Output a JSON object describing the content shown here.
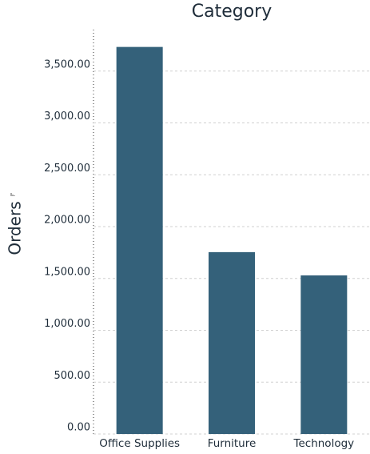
{
  "chart_data": {
    "type": "bar",
    "title": "Category",
    "y_label": "Orders",
    "categories": [
      "Office Supplies",
      "Furniture",
      "Technology"
    ],
    "values": [
      3733,
      1754,
      1530
    ],
    "color": "#34617a",
    "ylim": [
      0,
      3900
    ],
    "yticks": [
      {
        "value": 0,
        "label": "0.00"
      },
      {
        "value": 500,
        "label": "500.00"
      },
      {
        "value": 1000,
        "label": "1,000.00"
      },
      {
        "value": 1500,
        "label": "1,500.00"
      },
      {
        "value": 2000,
        "label": "2,000.00"
      },
      {
        "value": 2500,
        "label": "2,500.00"
      },
      {
        "value": 3000,
        "label": "3,000.00"
      },
      {
        "value": 3500,
        "label": "3,500.00"
      }
    ],
    "grid": true
  }
}
